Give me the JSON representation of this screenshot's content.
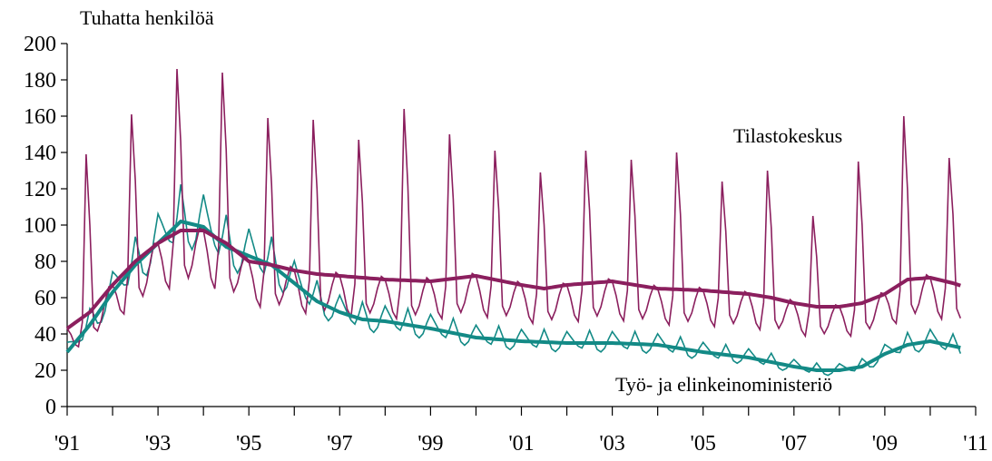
{
  "chart_data": {
    "type": "line",
    "title": "",
    "ylabel": "Tuhatta henkilöä",
    "xlabel": "",
    "ylim": [
      0,
      200
    ],
    "xlim": [
      1991,
      2011
    ],
    "y_ticks": [
      0,
      20,
      40,
      60,
      80,
      100,
      120,
      140,
      160,
      180,
      200
    ],
    "x_tick_labels": [
      "'91",
      "'93",
      "'95",
      "'97",
      "'99",
      "'01",
      "'03",
      "'05",
      "'07",
      "'09",
      "'11"
    ],
    "x_tick_years": [
      1991,
      1993,
      1995,
      1997,
      1999,
      2001,
      2003,
      2005,
      2007,
      2009,
      2011
    ],
    "grid": false,
    "colors": {
      "tilastokeskus": "#8b1f5e",
      "tem": "#138a86"
    },
    "series": [
      {
        "name": "Tilastokeskus",
        "label_text": "Tilastokeskus",
        "style": "monthly",
        "color": "#8b1f5e",
        "seasonal_peaks": [
          139,
          161,
          186,
          184,
          159,
          158,
          147,
          164,
          150,
          141,
          129,
          141,
          136,
          140,
          124,
          130,
          105,
          135,
          160,
          137
        ],
        "trend_points": [
          [
            1991.0,
            43
          ],
          [
            1991.5,
            52
          ],
          [
            1992.0,
            67
          ],
          [
            1992.5,
            80
          ],
          [
            1993.0,
            90
          ],
          [
            1993.5,
            97
          ],
          [
            1994.0,
            97
          ],
          [
            1994.5,
            90
          ],
          [
            1995.0,
            80
          ],
          [
            1995.5,
            78
          ],
          [
            1996.0,
            75
          ],
          [
            1996.5,
            73
          ],
          [
            1997.0,
            72
          ],
          [
            1998.0,
            70
          ],
          [
            1999.0,
            69
          ],
          [
            2000.0,
            72
          ],
          [
            2001.0,
            67
          ],
          [
            2001.5,
            65
          ],
          [
            2002.0,
            67
          ],
          [
            2003.0,
            69
          ],
          [
            2004.0,
            65
          ],
          [
            2005.0,
            64
          ],
          [
            2006.0,
            62
          ],
          [
            2006.5,
            60
          ],
          [
            2007.0,
            57
          ],
          [
            2007.5,
            55
          ],
          [
            2008.0,
            55
          ],
          [
            2008.5,
            57
          ],
          [
            2009.0,
            62
          ],
          [
            2009.5,
            70
          ],
          [
            2010.0,
            71
          ],
          [
            2010.5,
            68
          ],
          [
            2010.75,
            66
          ]
        ]
      },
      {
        "name": "Työ- ja elinkeinoministeriö",
        "label_text": "Työ- ja elinkeinoministeriö",
        "style": "monthly",
        "color": "#138a86",
        "trend_points": [
          [
            1991.0,
            30
          ],
          [
            1991.5,
            45
          ],
          [
            1992.0,
            63
          ],
          [
            1992.5,
            78
          ],
          [
            1993.0,
            90
          ],
          [
            1993.5,
            102
          ],
          [
            1994.0,
            99
          ],
          [
            1994.5,
            88
          ],
          [
            1995.0,
            83
          ],
          [
            1995.5,
            78
          ],
          [
            1996.0,
            68
          ],
          [
            1996.5,
            58
          ],
          [
            1997.0,
            52
          ],
          [
            1997.5,
            48
          ],
          [
            1998.0,
            47
          ],
          [
            1999.0,
            43
          ],
          [
            2000.0,
            38
          ],
          [
            2001.0,
            36
          ],
          [
            2002.0,
            35
          ],
          [
            2003.0,
            35
          ],
          [
            2004.0,
            34
          ],
          [
            2005.0,
            30
          ],
          [
            2006.0,
            27
          ],
          [
            2007.0,
            22
          ],
          [
            2007.5,
            20
          ],
          [
            2008.0,
            20
          ],
          [
            2008.5,
            22
          ],
          [
            2009.0,
            29
          ],
          [
            2009.5,
            34
          ],
          [
            2010.0,
            36
          ],
          [
            2010.75,
            32
          ]
        ]
      }
    ]
  }
}
